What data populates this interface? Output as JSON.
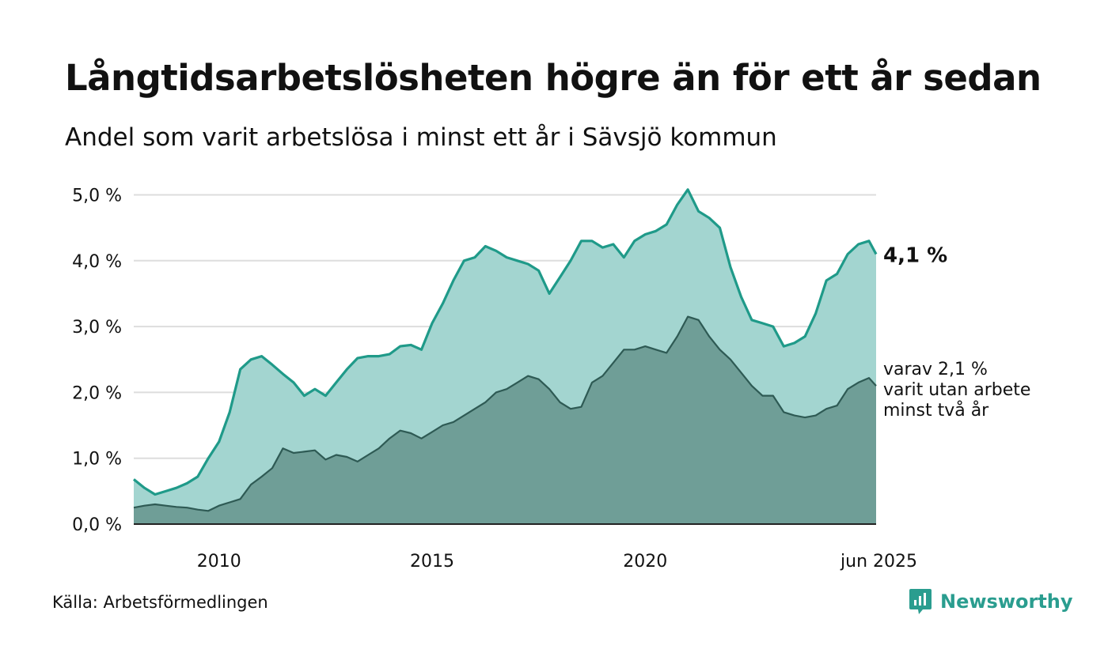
{
  "header": {
    "title": "Långtidsarbetslösheten högre än för ett år sedan",
    "subtitle": "Andel som varit arbetslösa i minst ett år i Sävsjö kommun"
  },
  "footer": {
    "source": "Källa: Arbetsförmedlingen",
    "brand": "Newsworthy"
  },
  "annotations": {
    "total_last": "4,1 %",
    "sub_last_lines": [
      "varav 2,1 %",
      "varit utan arbete",
      "minst två år"
    ]
  },
  "colors": {
    "total_line": "#1f9a89",
    "total_fill": "#a3d5d0",
    "sub_line": "#2e5a54",
    "sub_fill": "#6f9e97",
    "grid": "#dddddd",
    "brand": "#2a9d8f"
  },
  "chart_data": {
    "type": "area",
    "title": "Långtidsarbetslösheten högre än för ett år sedan",
    "subtitle": "Andel som varit arbetslösa i minst ett år i Sävsjö kommun",
    "x_start": "2008-01",
    "x_end": "2025-06",
    "x_ticks": [
      {
        "date": "2010-01",
        "label": "2010"
      },
      {
        "date": "2015-01",
        "label": "2015"
      },
      {
        "date": "2020-01",
        "label": "2020"
      },
      {
        "date": "2025-06",
        "label": "jun 2025"
      }
    ],
    "y_ticks": [
      {
        "value": 0,
        "label": "0,0 %"
      },
      {
        "value": 1,
        "label": "1,0 %"
      },
      {
        "value": 2,
        "label": "2,0 %"
      },
      {
        "value": 3,
        "label": "3,0 %"
      },
      {
        "value": 4,
        "label": "4,0 %"
      },
      {
        "value": 5,
        "label": "5,0 %"
      }
    ],
    "ylim": [
      0,
      5.2
    ],
    "grid": true,
    "series": [
      {
        "name": "minst ett år",
        "points": [
          [
            "2008-01",
            0.68
          ],
          [
            "2008-04",
            0.55
          ],
          [
            "2008-07",
            0.45
          ],
          [
            "2008-10",
            0.5
          ],
          [
            "2009-01",
            0.55
          ],
          [
            "2009-04",
            0.62
          ],
          [
            "2009-07",
            0.72
          ],
          [
            "2009-10",
            1.0
          ],
          [
            "2010-01",
            1.25
          ],
          [
            "2010-04",
            1.7
          ],
          [
            "2010-07",
            2.35
          ],
          [
            "2010-10",
            2.5
          ],
          [
            "2011-01",
            2.55
          ],
          [
            "2011-04",
            2.42
          ],
          [
            "2011-07",
            2.28
          ],
          [
            "2011-10",
            2.15
          ],
          [
            "2012-01",
            1.95
          ],
          [
            "2012-04",
            2.05
          ],
          [
            "2012-07",
            1.95
          ],
          [
            "2012-10",
            2.15
          ],
          [
            "2013-01",
            2.35
          ],
          [
            "2013-04",
            2.52
          ],
          [
            "2013-07",
            2.55
          ],
          [
            "2013-10",
            2.55
          ],
          [
            "2014-01",
            2.58
          ],
          [
            "2014-04",
            2.7
          ],
          [
            "2014-07",
            2.72
          ],
          [
            "2014-10",
            2.65
          ],
          [
            "2015-01",
            3.05
          ],
          [
            "2015-04",
            3.35
          ],
          [
            "2015-07",
            3.7
          ],
          [
            "2015-10",
            4.0
          ],
          [
            "2016-01",
            4.05
          ],
          [
            "2016-04",
            4.22
          ],
          [
            "2016-07",
            4.15
          ],
          [
            "2016-10",
            4.05
          ],
          [
            "2017-01",
            4.0
          ],
          [
            "2017-04",
            3.95
          ],
          [
            "2017-07",
            3.85
          ],
          [
            "2017-10",
            3.5
          ],
          [
            "2018-01",
            3.75
          ],
          [
            "2018-04",
            4.0
          ],
          [
            "2018-07",
            4.3
          ],
          [
            "2018-10",
            4.3
          ],
          [
            "2019-01",
            4.2
          ],
          [
            "2019-04",
            4.25
          ],
          [
            "2019-07",
            4.05
          ],
          [
            "2019-10",
            4.3
          ],
          [
            "2020-01",
            4.4
          ],
          [
            "2020-04",
            4.45
          ],
          [
            "2020-07",
            4.55
          ],
          [
            "2020-10",
            4.85
          ],
          [
            "2021-01",
            5.08
          ],
          [
            "2021-04",
            4.75
          ],
          [
            "2021-07",
            4.65
          ],
          [
            "2021-10",
            4.5
          ],
          [
            "2022-01",
            3.9
          ],
          [
            "2022-04",
            3.45
          ],
          [
            "2022-07",
            3.1
          ],
          [
            "2022-10",
            3.05
          ],
          [
            "2023-01",
            3.0
          ],
          [
            "2023-04",
            2.7
          ],
          [
            "2023-07",
            2.75
          ],
          [
            "2023-10",
            2.85
          ],
          [
            "2024-01",
            3.2
          ],
          [
            "2024-04",
            3.7
          ],
          [
            "2024-07",
            3.8
          ],
          [
            "2024-10",
            4.1
          ],
          [
            "2025-01",
            4.25
          ],
          [
            "2025-04",
            4.3
          ],
          [
            "2025-06",
            4.1
          ]
        ]
      },
      {
        "name": "minst två år",
        "points": [
          [
            "2008-01",
            0.25
          ],
          [
            "2008-04",
            0.28
          ],
          [
            "2008-07",
            0.3
          ],
          [
            "2008-10",
            0.28
          ],
          [
            "2009-01",
            0.26
          ],
          [
            "2009-04",
            0.25
          ],
          [
            "2009-07",
            0.22
          ],
          [
            "2009-10",
            0.2
          ],
          [
            "2010-01",
            0.28
          ],
          [
            "2010-04",
            0.33
          ],
          [
            "2010-07",
            0.38
          ],
          [
            "2010-10",
            0.6
          ],
          [
            "2011-01",
            0.72
          ],
          [
            "2011-04",
            0.85
          ],
          [
            "2011-07",
            1.15
          ],
          [
            "2011-10",
            1.08
          ],
          [
            "2012-01",
            1.1
          ],
          [
            "2012-04",
            1.12
          ],
          [
            "2012-07",
            0.98
          ],
          [
            "2012-10",
            1.05
          ],
          [
            "2013-01",
            1.02
          ],
          [
            "2013-04",
            0.95
          ],
          [
            "2013-07",
            1.05
          ],
          [
            "2013-10",
            1.15
          ],
          [
            "2014-01",
            1.3
          ],
          [
            "2014-04",
            1.42
          ],
          [
            "2014-07",
            1.38
          ],
          [
            "2014-10",
            1.3
          ],
          [
            "2015-01",
            1.4
          ],
          [
            "2015-04",
            1.5
          ],
          [
            "2015-07",
            1.55
          ],
          [
            "2015-10",
            1.65
          ],
          [
            "2016-01",
            1.75
          ],
          [
            "2016-04",
            1.85
          ],
          [
            "2016-07",
            2.0
          ],
          [
            "2016-10",
            2.05
          ],
          [
            "2017-01",
            2.15
          ],
          [
            "2017-04",
            2.25
          ],
          [
            "2017-07",
            2.2
          ],
          [
            "2017-10",
            2.05
          ],
          [
            "2018-01",
            1.85
          ],
          [
            "2018-04",
            1.75
          ],
          [
            "2018-07",
            1.78
          ],
          [
            "2018-10",
            2.15
          ],
          [
            "2019-01",
            2.25
          ],
          [
            "2019-04",
            2.45
          ],
          [
            "2019-07",
            2.65
          ],
          [
            "2019-10",
            2.65
          ],
          [
            "2020-01",
            2.7
          ],
          [
            "2020-04",
            2.65
          ],
          [
            "2020-07",
            2.6
          ],
          [
            "2020-10",
            2.85
          ],
          [
            "2021-01",
            3.15
          ],
          [
            "2021-04",
            3.1
          ],
          [
            "2021-07",
            2.85
          ],
          [
            "2021-10",
            2.65
          ],
          [
            "2022-01",
            2.5
          ],
          [
            "2022-04",
            2.3
          ],
          [
            "2022-07",
            2.1
          ],
          [
            "2022-10",
            1.95
          ],
          [
            "2023-01",
            1.95
          ],
          [
            "2023-04",
            1.7
          ],
          [
            "2023-07",
            1.65
          ],
          [
            "2023-10",
            1.62
          ],
          [
            "2024-01",
            1.65
          ],
          [
            "2024-04",
            1.75
          ],
          [
            "2024-07",
            1.8
          ],
          [
            "2024-10",
            2.05
          ],
          [
            "2025-01",
            2.15
          ],
          [
            "2025-04",
            2.22
          ],
          [
            "2025-06",
            2.1
          ]
        ]
      }
    ]
  }
}
